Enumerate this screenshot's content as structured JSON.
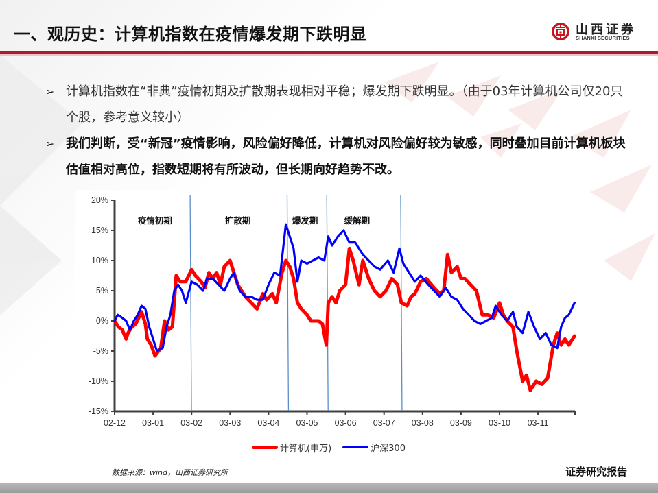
{
  "header": {
    "title": "一、观历史：计算机指数在疫情爆发期下跌明显",
    "logo": {
      "icon": "shanxi-securities-logo-icon",
      "name_cn": "山西证券",
      "name_en": "SHANXI SECURITIES"
    },
    "accent_color": "#b0182b"
  },
  "bullets": [
    {
      "icon": "arrow-bullet-icon",
      "glyph": "➢",
      "text": "计算机指数在“非典”疫情初期及扩散期表现相对平稳；爆发期下跌明显。（由于03年计算机公司仅20只个股，参考意义较小）",
      "bold": false
    },
    {
      "icon": "arrow-bullet-icon",
      "glyph": "➢",
      "text": "我们判断，受“新冠”疫情影响，风险偏好降低，计算机对风险偏好较为敏感，同时叠加目前计算机板块估值相对高位，指数短期将有所波动，但长期向好趋势不改。",
      "bold": true
    }
  ],
  "chart_data": {
    "type": "line",
    "title": "",
    "xlabel": "",
    "ylabel": "",
    "ylim": [
      -15,
      20
    ],
    "yticks": [
      "20%",
      "15%",
      "10%",
      "5%",
      "0%",
      "-5%",
      "-10%",
      "-15%"
    ],
    "ytick_values": [
      20,
      15,
      10,
      5,
      0,
      -5,
      -10,
      -15
    ],
    "categories": [
      "02-12",
      "03-01",
      "03-02",
      "03-03",
      "03-04",
      "03-05",
      "03-06",
      "03-07",
      "03-08",
      "03-09",
      "03-10",
      "03-11"
    ],
    "grid": false,
    "legend_position": "bottom",
    "phase_dividers_x": [
      1.98,
      4.5,
      5.53,
      7.45
    ],
    "phases": [
      {
        "label": "疫情初期",
        "x_center": 1.05
      },
      {
        "label": "扩散期",
        "x_center": 3.2
      },
      {
        "label": "爆发期",
        "x_center": 4.95
      },
      {
        "label": "缓解期",
        "x_center": 6.3
      }
    ],
    "series": [
      {
        "name": "计算机(申万)",
        "color": "#ff0000",
        "x": [
          0,
          0.1,
          0.2,
          0.3,
          0.35,
          0.45,
          0.55,
          0.7,
          0.8,
          0.85,
          0.95,
          1.05,
          1.2,
          1.3,
          1.4,
          1.5,
          1.6,
          1.7,
          1.85,
          2.0,
          2.1,
          2.25,
          2.35,
          2.45,
          2.55,
          2.65,
          2.75,
          2.85,
          3.0,
          3.1,
          3.2,
          3.3,
          3.4,
          3.55,
          3.7,
          3.85,
          3.95,
          4.1,
          4.2,
          4.35,
          4.45,
          4.55,
          4.65,
          4.75,
          4.85,
          5.0,
          5.1,
          5.2,
          5.3,
          5.4,
          5.5,
          5.55,
          5.65,
          5.75,
          5.85,
          6.0,
          6.1,
          6.2,
          6.35,
          6.45,
          6.6,
          6.75,
          6.9,
          7.05,
          7.2,
          7.35,
          7.45,
          7.6,
          7.7,
          7.8,
          7.95,
          8.1,
          8.3,
          8.45,
          8.55,
          8.65,
          8.75,
          8.9,
          9.0,
          9.1,
          9.25,
          9.4,
          9.55,
          9.7,
          9.85,
          10.0,
          10.1,
          10.2,
          10.35,
          10.45,
          10.6,
          10.7,
          10.8,
          10.95,
          11.1,
          11.25,
          11.4,
          11.5,
          11.6,
          11.7,
          11.8,
          11.95
        ],
        "values": [
          0,
          -1,
          -1.5,
          -3,
          -2,
          -1,
          -0.5,
          1.5,
          -0.5,
          -3,
          -4,
          -5.8,
          -4.5,
          0,
          -1.5,
          -1,
          7.5,
          6.5,
          6.5,
          8.5,
          7.5,
          6.5,
          5.5,
          8,
          7,
          8,
          6,
          9,
          10,
          8,
          6,
          5,
          4,
          3,
          2,
          4.5,
          3.5,
          4.5,
          3,
          8,
          10,
          9,
          7,
          3,
          2,
          1,
          0,
          0,
          0,
          -0.5,
          -4,
          3,
          4,
          3,
          5,
          6,
          12,
          10,
          6,
          10,
          7,
          5,
          4,
          5,
          7,
          6,
          3,
          2.5,
          4,
          4.5,
          6.5,
          7,
          5.5,
          4.5,
          5,
          11,
          8,
          9,
          7,
          7,
          6,
          5,
          1,
          1,
          0.5,
          3,
          1,
          0,
          -1,
          -5,
          -10,
          -9,
          -11.5,
          -10,
          -10.5,
          -9.5,
          -4,
          -2,
          -4,
          -3,
          -4,
          -2.5
        ]
      },
      {
        "name": "沪深300",
        "color": "#0000ff",
        "x": [
          0,
          0.08,
          0.2,
          0.3,
          0.4,
          0.5,
          0.6,
          0.7,
          0.8,
          0.9,
          1.0,
          1.1,
          1.25,
          1.35,
          1.45,
          1.55,
          1.65,
          1.75,
          1.85,
          2.0,
          2.15,
          2.3,
          2.4,
          2.55,
          2.7,
          2.85,
          3.0,
          3.1,
          3.25,
          3.4,
          3.55,
          3.7,
          3.85,
          4.0,
          4.15,
          4.3,
          4.45,
          4.55,
          4.65,
          4.75,
          4.85,
          5.0,
          5.15,
          5.3,
          5.45,
          5.55,
          5.65,
          5.8,
          5.95,
          6.1,
          6.25,
          6.45,
          6.6,
          6.75,
          6.9,
          7.1,
          7.25,
          7.4,
          7.5,
          7.65,
          7.8,
          7.95,
          8.15,
          8.3,
          8.45,
          8.6,
          8.75,
          8.9,
          9.05,
          9.2,
          9.35,
          9.5,
          9.65,
          9.8,
          9.9,
          10.05,
          10.2,
          10.35,
          10.45,
          10.6,
          10.75,
          10.9,
          11.05,
          11.2,
          11.35,
          11.5,
          11.6,
          11.7,
          11.8,
          11.95
        ],
        "values": [
          0,
          1,
          0.5,
          0,
          -1.5,
          0,
          1,
          2.5,
          2,
          -1,
          -3,
          -5,
          -4.5,
          -1,
          1,
          5,
          6,
          5,
          3,
          6.5,
          6,
          5,
          7,
          7,
          6,
          5,
          7,
          8,
          5,
          4,
          4,
          3.5,
          3.5,
          6,
          8,
          7.5,
          16,
          14,
          12,
          6.5,
          10,
          9.5,
          10,
          10.5,
          10,
          14,
          12.5,
          14,
          15,
          13,
          13,
          11,
          10,
          9,
          8.5,
          10,
          8,
          12,
          9.5,
          8,
          6.5,
          7.5,
          6,
          5,
          4,
          5.5,
          4,
          3.5,
          2,
          1,
          0,
          -0.5,
          0,
          0.5,
          2.5,
          1,
          0,
          1.5,
          -1,
          -2,
          1.5,
          -1,
          -3,
          -2,
          -4,
          -4.5,
          -1,
          0.5,
          1,
          3
        ]
      }
    ],
    "legend": [
      "计算机(申万)",
      "沪深300"
    ]
  },
  "footer": {
    "source": "数据来源：wind，山西证券研究所",
    "report_type": "证券研究报告"
  }
}
